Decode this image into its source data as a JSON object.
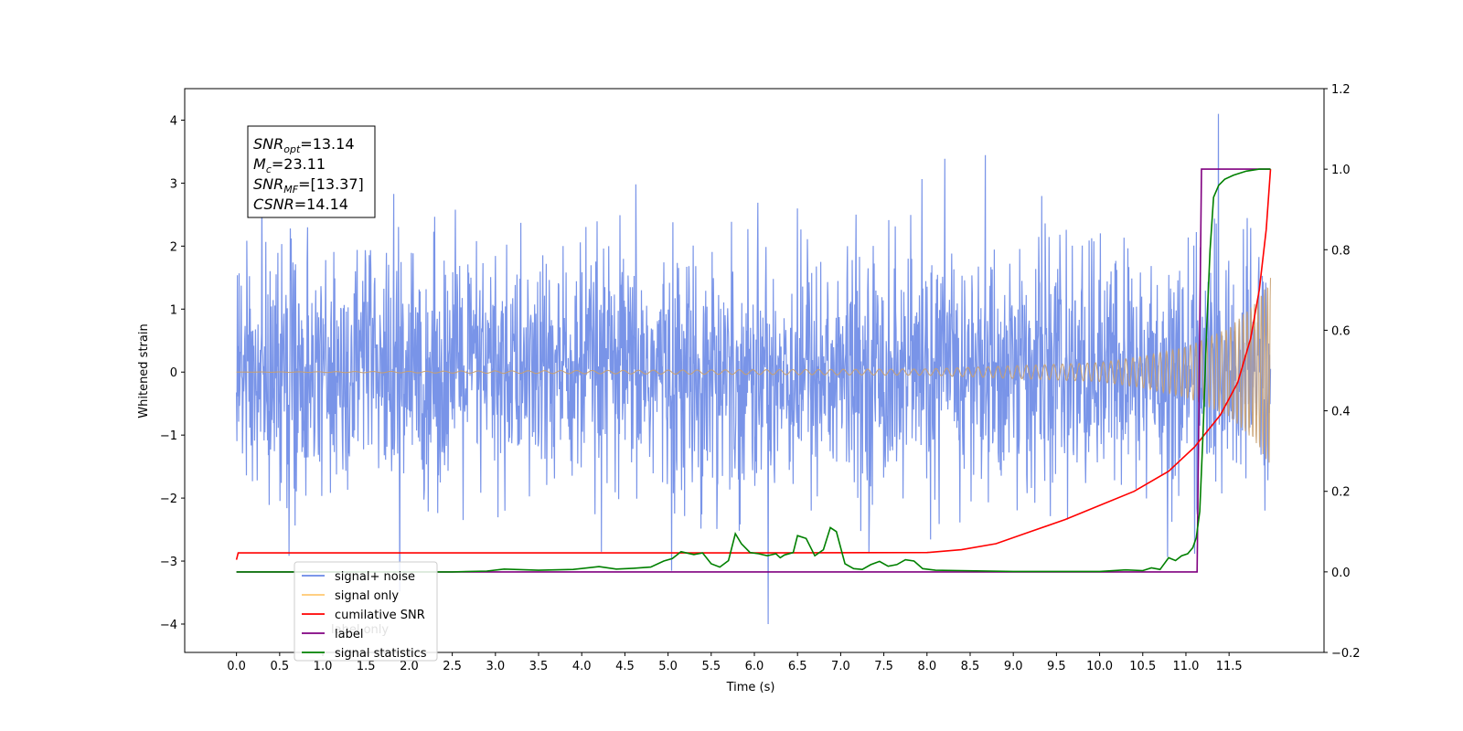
{
  "chart_data": {
    "type": "line",
    "xlabel": "Time (s)",
    "ylabel": "Whitened strain",
    "xlim": [
      -0.6,
      12.6
    ],
    "ylim": [
      -4.45,
      4.5
    ],
    "y2lim": [
      -0.2,
      1.2
    ],
    "x_ticks": [
      0.0,
      0.5,
      1.0,
      1.5,
      2.0,
      2.5,
      3.0,
      3.5,
      4.0,
      4.5,
      5.0,
      5.5,
      6.0,
      6.5,
      7.0,
      7.5,
      8.0,
      8.5,
      9.0,
      9.5,
      10.0,
      10.5,
      11.0,
      11.5
    ],
    "x_tick_labels": [
      "0.0",
      "0.5",
      "1.0",
      "1.5",
      "2.0",
      "2.5",
      "3.0",
      "3.5",
      "4.0",
      "4.5",
      "5.0",
      "5.5",
      "6.0",
      "6.5",
      "7.0",
      "7.5",
      "8.0",
      "8.5",
      "9.0",
      "9.5",
      "10.0",
      "10.5",
      "11.0",
      "11.5"
    ],
    "y_ticks": [
      -4,
      -3,
      -2,
      -1,
      0,
      1,
      2,
      3,
      4
    ],
    "y_tick_labels": [
      "−4",
      "−3",
      "−2",
      "−1",
      "0",
      "1",
      "2",
      "3",
      "4"
    ],
    "y2_ticks": [
      -0.2,
      0.0,
      0.2,
      0.4,
      0.6,
      0.8,
      1.0,
      1.2
    ],
    "y2_tick_labels": [
      "−0.2",
      "0.0",
      "0.2",
      "0.4",
      "0.6",
      "0.8",
      "1.0",
      "1.2"
    ],
    "grid": false,
    "legend_position": "lower-left",
    "legend": [
      {
        "label": "signal+ noise",
        "color": "#6a88e6"
      },
      {
        "label": "signal only",
        "color": "#ffc870"
      },
      {
        "label": "cumilative SNR",
        "color": "#ff0000"
      },
      {
        "label": "label",
        "color": "#800080"
      },
      {
        "label": "signal statistics",
        "color": "#008000"
      }
    ],
    "hidden_legend_text": "label only",
    "annotation": {
      "lines": [
        {
          "base": "SNR",
          "sub": "opt",
          "value": "=13.14"
        },
        {
          "base": "M",
          "sub": "c",
          "value": "=23.11"
        },
        {
          "base": "SNR",
          "sub": "MF",
          "value": "=[13.37]"
        },
        {
          "base": "CSNR",
          "sub": "",
          "value": "=14.14"
        }
      ]
    },
    "series": [
      {
        "name": "signal+ noise",
        "axis": "left",
        "color": "#6a88e6",
        "description": "noisy whitened strain, amplitude roughly ±2.5 with spikes up to about ±4",
        "x_range": [
          0.0,
          11.98
        ],
        "envelope": [
          2.5,
          4.1
        ]
      },
      {
        "name": "signal only",
        "axis": "left",
        "color": "#c8a070",
        "description": "chirp signal growing in amplitude, from ~0 up to ~1.5 at 11.98 s",
        "x_range": [
          0.0,
          11.98
        ],
        "amplitude_points": [
          [
            0.0,
            0.0
          ],
          [
            8.0,
            0.05
          ],
          [
            9.0,
            0.1
          ],
          [
            10.0,
            0.15
          ],
          [
            10.5,
            0.25
          ],
          [
            11.0,
            0.4
          ],
          [
            11.5,
            0.7
          ],
          [
            11.8,
            1.1
          ],
          [
            11.98,
            1.5
          ]
        ]
      },
      {
        "name": "cumilative SNR",
        "axis": "right",
        "color": "#ff0000",
        "points": [
          [
            0.0,
            0.03
          ],
          [
            0.02,
            0.047
          ],
          [
            3.0,
            0.047
          ],
          [
            6.0,
            0.047
          ],
          [
            8.0,
            0.048
          ],
          [
            8.4,
            0.055
          ],
          [
            8.8,
            0.07
          ],
          [
            9.2,
            0.1
          ],
          [
            9.6,
            0.13
          ],
          [
            10.0,
            0.165
          ],
          [
            10.4,
            0.2
          ],
          [
            10.8,
            0.25
          ],
          [
            11.1,
            0.31
          ],
          [
            11.4,
            0.39
          ],
          [
            11.6,
            0.47
          ],
          [
            11.75,
            0.58
          ],
          [
            11.85,
            0.7
          ],
          [
            11.93,
            0.85
          ],
          [
            11.98,
            1.0
          ]
        ]
      },
      {
        "name": "label",
        "axis": "right",
        "color": "#800080",
        "points": [
          [
            0.0,
            0.0
          ],
          [
            11.13,
            0.0
          ],
          [
            11.18,
            1.0
          ],
          [
            11.98,
            1.0
          ]
        ]
      },
      {
        "name": "signal statistics",
        "axis": "right",
        "color": "#008000",
        "points": [
          [
            0.0,
            0.0
          ],
          [
            2.5,
            0.0
          ],
          [
            2.9,
            0.002
          ],
          [
            3.1,
            0.007
          ],
          [
            3.5,
            0.004
          ],
          [
            3.9,
            0.006
          ],
          [
            4.2,
            0.013
          ],
          [
            4.4,
            0.007
          ],
          [
            4.6,
            0.009
          ],
          [
            4.8,
            0.012
          ],
          [
            4.95,
            0.027
          ],
          [
            5.05,
            0.033
          ],
          [
            5.15,
            0.05
          ],
          [
            5.3,
            0.043
          ],
          [
            5.4,
            0.047
          ],
          [
            5.5,
            0.02
          ],
          [
            5.6,
            0.012
          ],
          [
            5.7,
            0.028
          ],
          [
            5.78,
            0.095
          ],
          [
            5.85,
            0.07
          ],
          [
            5.95,
            0.048
          ],
          [
            6.05,
            0.045
          ],
          [
            6.15,
            0.04
          ],
          [
            6.25,
            0.045
          ],
          [
            6.3,
            0.035
          ],
          [
            6.35,
            0.042
          ],
          [
            6.45,
            0.048
          ],
          [
            6.5,
            0.09
          ],
          [
            6.6,
            0.083
          ],
          [
            6.7,
            0.04
          ],
          [
            6.8,
            0.055
          ],
          [
            6.88,
            0.11
          ],
          [
            6.95,
            0.1
          ],
          [
            7.05,
            0.02
          ],
          [
            7.15,
            0.008
          ],
          [
            7.25,
            0.006
          ],
          [
            7.35,
            0.018
          ],
          [
            7.45,
            0.026
          ],
          [
            7.55,
            0.014
          ],
          [
            7.65,
            0.018
          ],
          [
            7.75,
            0.03
          ],
          [
            7.85,
            0.027
          ],
          [
            7.95,
            0.008
          ],
          [
            8.1,
            0.004
          ],
          [
            8.4,
            0.003
          ],
          [
            9.0,
            0.001
          ],
          [
            10.0,
            0.001
          ],
          [
            10.3,
            0.005
          ],
          [
            10.5,
            0.003
          ],
          [
            10.6,
            0.01
          ],
          [
            10.7,
            0.006
          ],
          [
            10.8,
            0.035
          ],
          [
            10.88,
            0.028
          ],
          [
            10.95,
            0.04
          ],
          [
            11.02,
            0.045
          ],
          [
            11.08,
            0.06
          ],
          [
            11.12,
            0.085
          ],
          [
            11.16,
            0.15
          ],
          [
            11.2,
            0.35
          ],
          [
            11.24,
            0.6
          ],
          [
            11.28,
            0.8
          ],
          [
            11.32,
            0.93
          ],
          [
            11.38,
            0.96
          ],
          [
            11.45,
            0.975
          ],
          [
            11.55,
            0.985
          ],
          [
            11.7,
            0.995
          ],
          [
            11.85,
            1.0
          ],
          [
            11.98,
            1.0
          ]
        ]
      }
    ]
  }
}
